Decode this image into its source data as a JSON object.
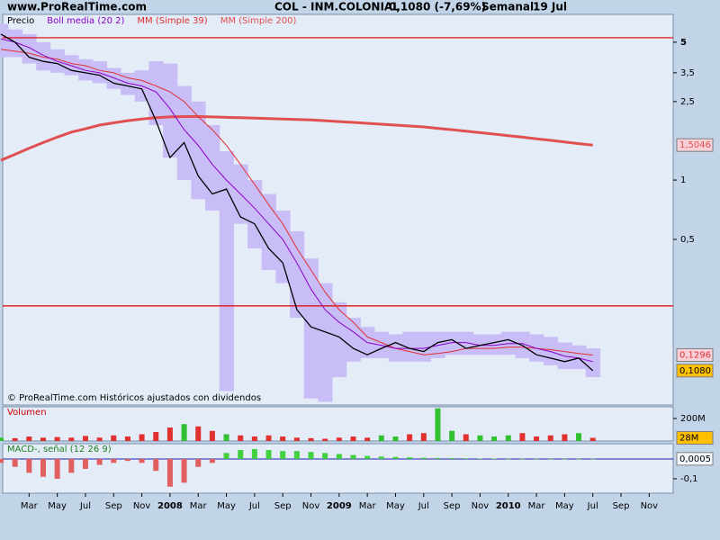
{
  "header": {
    "site": "www.ProRealTime.com",
    "symbol": "COL - INM.COLONIAL",
    "quote": "0,1080 (-7,69%)",
    "period": "Semanal",
    "date": "19 Jul"
  },
  "chart_data": [
    {
      "type": "line",
      "log_scale": true,
      "note": "© ProRealTime.com Históricos ajustados con dividendos",
      "x": [
        "2007-01",
        "2007-02",
        "2007-03",
        "2007-04",
        "2007-05",
        "2007-06",
        "2007-07",
        "2007-08",
        "2007-09",
        "2007-10",
        "2007-11",
        "2007-12",
        "2008-01",
        "2008-02",
        "2008-03",
        "2008-04",
        "2008-05",
        "2008-06",
        "2008-07",
        "2008-08",
        "2008-09",
        "2008-10",
        "2008-11",
        "2008-12",
        "2009-01",
        "2009-02",
        "2009-03",
        "2009-04",
        "2009-05",
        "2009-06",
        "2009-07",
        "2009-08",
        "2009-09",
        "2009-10",
        "2009-11",
        "2009-12",
        "2010-01",
        "2010-02",
        "2010-03",
        "2010-04",
        "2010-05",
        "2010-06",
        "2010-07"
      ],
      "xlim": [
        "2007-01",
        "2010-12"
      ],
      "xticks": [
        {
          "value": "2007-03",
          "label": "Mar"
        },
        {
          "value": "2007-05",
          "label": "May"
        },
        {
          "value": "2007-07",
          "label": "Jul"
        },
        {
          "value": "2007-09",
          "label": "Sep"
        },
        {
          "value": "2007-11",
          "label": "Nov"
        },
        {
          "value": "2008-01",
          "label": "2008"
        },
        {
          "value": "2008-03",
          "label": "Mar"
        },
        {
          "value": "2008-05",
          "label": "May"
        },
        {
          "value": "2008-07",
          "label": "Jul"
        },
        {
          "value": "2008-09",
          "label": "Sep"
        },
        {
          "value": "2008-11",
          "label": "Nov"
        },
        {
          "value": "2009-01",
          "label": "2009"
        },
        {
          "value": "2009-03",
          "label": "Mar"
        },
        {
          "value": "2009-05",
          "label": "May"
        },
        {
          "value": "2009-07",
          "label": "Jul"
        },
        {
          "value": "2009-09",
          "label": "Sep"
        },
        {
          "value": "2009-11",
          "label": "Nov"
        },
        {
          "value": "2010-01",
          "label": "2010"
        },
        {
          "value": "2010-03",
          "label": "Mar"
        },
        {
          "value": "2010-05",
          "label": "May"
        },
        {
          "value": "2010-07",
          "label": "Jul"
        },
        {
          "value": "2010-09",
          "label": "Sep"
        },
        {
          "value": "2010-11",
          "label": "Nov"
        }
      ],
      "ylim": [
        0.0723,
        6.92
      ],
      "yticks": [
        5,
        {
          "value": 3.5,
          "label": "3,5"
        },
        {
          "value": 2.5,
          "label": "2,5"
        },
        1,
        {
          "value": 0.5,
          "label": "0,5"
        }
      ],
      "hlines": [
        5.27,
        0.23
      ],
      "hline_color": "#e00000",
      "band": {
        "color": "#c9bdf7",
        "upper": [
          6.2,
          5.8,
          5.5,
          5.0,
          4.6,
          4.3,
          4.1,
          4.0,
          3.7,
          3.5,
          3.6,
          4.0,
          3.9,
          3.0,
          2.5,
          1.9,
          1.4,
          1.2,
          1.0,
          0.85,
          0.7,
          0.55,
          0.4,
          0.3,
          0.24,
          0.2,
          0.18,
          0.17,
          0.165,
          0.17,
          0.17,
          0.17,
          0.17,
          0.17,
          0.165,
          0.165,
          0.17,
          0.17,
          0.165,
          0.16,
          0.15,
          0.145,
          0.14
        ],
        "lower": [
          4.2,
          4.2,
          3.9,
          3.6,
          3.5,
          3.4,
          3.2,
          3.1,
          2.9,
          2.7,
          2.5,
          1.9,
          1.3,
          1.0,
          0.8,
          0.7,
          0.085,
          0.6,
          0.45,
          0.35,
          0.3,
          0.2,
          0.078,
          0.075,
          0.1,
          0.12,
          0.125,
          0.125,
          0.12,
          0.12,
          0.12,
          0.125,
          0.13,
          0.13,
          0.13,
          0.13,
          0.13,
          0.125,
          0.12,
          0.115,
          0.11,
          0.11,
          0.1
        ]
      },
      "series": [
        {
          "name": "Precio",
          "color": "#000000",
          "width": 1.3,
          "label_bg": "#ffc000",
          "last_label": "0,1080",
          "values": [
            5.5,
            5.0,
            4.2,
            4.0,
            3.9,
            3.6,
            3.5,
            3.4,
            3.1,
            3.0,
            2.9,
            2.0,
            1.3,
            1.55,
            1.05,
            0.85,
            0.9,
            0.65,
            0.6,
            0.45,
            0.38,
            0.22,
            0.18,
            0.17,
            0.16,
            0.14,
            0.13,
            0.14,
            0.15,
            0.14,
            0.135,
            0.15,
            0.155,
            0.14,
            0.145,
            0.15,
            0.155,
            0.145,
            0.13,
            0.125,
            0.12,
            0.125,
            0.108
          ]
        },
        {
          "name": "Boll media (20 2)",
          "color": "#8a00c8",
          "width": 1,
          "values": [
            5.2,
            5.0,
            4.7,
            4.3,
            4.0,
            3.8,
            3.6,
            3.5,
            3.3,
            3.1,
            3.0,
            2.8,
            2.3,
            1.8,
            1.5,
            1.2,
            1.0,
            0.85,
            0.72,
            0.6,
            0.5,
            0.38,
            0.28,
            0.22,
            0.19,
            0.17,
            0.15,
            0.145,
            0.14,
            0.14,
            0.14,
            0.145,
            0.15,
            0.15,
            0.145,
            0.145,
            0.148,
            0.148,
            0.14,
            0.135,
            0.128,
            0.125,
            0.12
          ]
        },
        {
          "name": "MM (Simple 39)",
          "color": "#e03030",
          "width": 1,
          "label_bg": "#f8d0d8",
          "last_label": "0,1296",
          "values": [
            4.6,
            4.5,
            4.4,
            4.2,
            4.1,
            3.9,
            3.8,
            3.6,
            3.5,
            3.3,
            3.2,
            3.0,
            2.8,
            2.5,
            2.1,
            1.8,
            1.5,
            1.2,
            0.95,
            0.75,
            0.6,
            0.45,
            0.35,
            0.27,
            0.22,
            0.19,
            0.16,
            0.15,
            0.14,
            0.135,
            0.13,
            0.132,
            0.135,
            0.14,
            0.14,
            0.14,
            0.142,
            0.142,
            0.14,
            0.138,
            0.135,
            0.132,
            0.1296
          ]
        },
        {
          "name": "MM (Simple 200)",
          "color": "#e05050",
          "width": 3,
          "label_bg": "#f8d0d8",
          "last_label": "1,5046",
          "values": [
            1.26,
            1.35,
            1.45,
            1.55,
            1.65,
            1.75,
            1.82,
            1.9,
            1.95,
            2.0,
            2.04,
            2.07,
            2.09,
            2.1,
            2.1,
            2.09,
            2.08,
            2.07,
            2.06,
            2.05,
            2.04,
            2.03,
            2.02,
            2.0,
            1.98,
            1.96,
            1.94,
            1.92,
            1.9,
            1.88,
            1.86,
            1.83,
            1.8,
            1.77,
            1.74,
            1.71,
            1.68,
            1.65,
            1.62,
            1.59,
            1.56,
            1.53,
            1.5046
          ]
        }
      ]
    },
    {
      "type": "bar",
      "title": "Volumen",
      "title_color": "#d00000",
      "positive_color": "#30c030",
      "negative_color": "#e03030",
      "ylim": [
        0,
        304
      ],
      "yticks": [
        {
          "value": 200,
          "label": "200M"
        }
      ],
      "label_bg": "#ffc000",
      "last_label": "28M",
      "values": [
        30,
        25,
        40,
        30,
        35,
        30,
        45,
        30,
        50,
        40,
        60,
        80,
        120,
        150,
        130,
        90,
        60,
        50,
        40,
        50,
        40,
        30,
        25,
        20,
        30,
        40,
        30,
        50,
        40,
        60,
        70,
        290,
        90,
        60,
        50,
        40,
        50,
        70,
        40,
        50,
        60,
        70,
        28
      ]
    },
    {
      "type": "bar",
      "title": "MACD-, señal (12 26 9)",
      "title_color": "#208020",
      "positive_color": "#40d040",
      "negative_color": "#e06060",
      "zero_line_color": "#2020b0",
      "ylim": [
        -0.173,
        0.077
      ],
      "yticks": [
        {
          "value": -0.1,
          "label": "-0,1"
        }
      ],
      "label_bg": "#f4f8ff",
      "last_label": "0,0005",
      "values": [
        -0.02,
        -0.04,
        -0.07,
        -0.09,
        -0.1,
        -0.07,
        -0.05,
        -0.03,
        -0.02,
        -0.01,
        -0.02,
        -0.06,
        -0.14,
        -0.12,
        -0.04,
        -0.02,
        0.03,
        0.045,
        0.05,
        0.045,
        0.04,
        0.04,
        0.035,
        0.03,
        0.025,
        0.02,
        0.015,
        0.012,
        0.01,
        0.008,
        0.006,
        0.005,
        0.004,
        0.003,
        0.002,
        0.002,
        0.001,
        0.001,
        0.001,
        0.0005,
        0.0005,
        0.0005,
        0.0005
      ]
    }
  ]
}
